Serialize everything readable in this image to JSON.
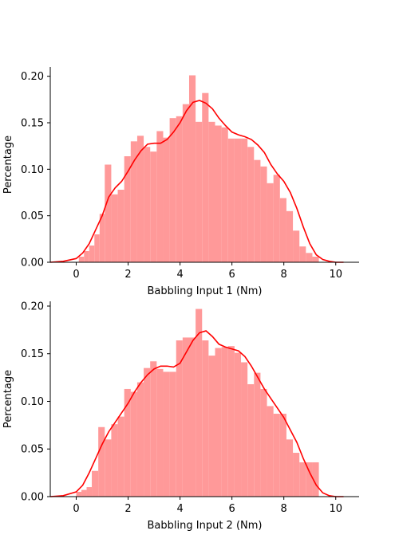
{
  "chart_data": [
    {
      "type": "bar",
      "xlabel": "Babbling Input 1 (Nm)",
      "ylabel": "Percentage",
      "xlim": [
        -1.0,
        10.9
      ],
      "ylim": [
        0.0,
        0.21
      ],
      "xticks": [
        0,
        2,
        4,
        6,
        8,
        10
      ],
      "yticks": [
        0.0,
        0.05,
        0.1,
        0.15,
        0.2
      ],
      "ytick_labels": [
        "0.00",
        "0.05",
        "0.10",
        "0.15",
        "0.20"
      ],
      "bar_color": "#ff9999",
      "kde_color": "#ff0000",
      "grid": false,
      "histogram": {
        "bin_edges": [
          0.1,
          0.3,
          0.5,
          0.7,
          0.9,
          1.1,
          1.35,
          1.6,
          1.85,
          2.1,
          2.35,
          2.6,
          2.85,
          3.1,
          3.35,
          3.6,
          3.85,
          4.1,
          4.35,
          4.6,
          4.85,
          5.1,
          5.35,
          5.6,
          5.85,
          6.1,
          6.35,
          6.6,
          6.85,
          7.1,
          7.35,
          7.6,
          7.85,
          8.1,
          8.35,
          8.6,
          8.85,
          9.1,
          9.35
        ],
        "values": [
          0.006,
          0.012,
          0.018,
          0.03,
          0.052,
          0.105,
          0.073,
          0.078,
          0.114,
          0.13,
          0.136,
          0.124,
          0.119,
          0.141,
          0.134,
          0.155,
          0.157,
          0.17,
          0.201,
          0.151,
          0.182,
          0.151,
          0.147,
          0.145,
          0.133,
          0.133,
          0.133,
          0.124,
          0.11,
          0.103,
          0.085,
          0.094,
          0.069,
          0.055,
          0.034,
          0.017,
          0.01,
          0.006
        ]
      },
      "kde": {
        "x": [
          -1.0,
          -0.5,
          0.0,
          0.25,
          0.5,
          0.75,
          1.0,
          1.25,
          1.5,
          1.75,
          2.0,
          2.25,
          2.5,
          2.75,
          3.0,
          3.25,
          3.5,
          3.75,
          4.0,
          4.25,
          4.5,
          4.75,
          5.0,
          5.25,
          5.5,
          5.75,
          6.0,
          6.25,
          6.5,
          6.75,
          7.0,
          7.25,
          7.5,
          7.75,
          8.0,
          8.25,
          8.5,
          8.75,
          9.0,
          9.25,
          9.5,
          9.75,
          10.0,
          10.3
        ],
        "y": [
          0.0,
          0.001,
          0.004,
          0.01,
          0.02,
          0.035,
          0.05,
          0.07,
          0.08,
          0.087,
          0.098,
          0.11,
          0.12,
          0.127,
          0.128,
          0.128,
          0.132,
          0.14,
          0.15,
          0.163,
          0.172,
          0.174,
          0.171,
          0.165,
          0.155,
          0.147,
          0.14,
          0.137,
          0.135,
          0.132,
          0.126,
          0.118,
          0.105,
          0.095,
          0.087,
          0.075,
          0.058,
          0.038,
          0.02,
          0.008,
          0.003,
          0.001,
          0.0,
          0.0
        ]
      }
    },
    {
      "type": "bar",
      "xlabel": "Babbling Input 2 (Nm)",
      "ylabel": "Percentage",
      "xlim": [
        -1.0,
        10.9
      ],
      "ylim": [
        0.0,
        0.205
      ],
      "xticks": [
        0,
        2,
        4,
        6,
        8,
        10
      ],
      "yticks": [
        0.0,
        0.05,
        0.1,
        0.15,
        0.2
      ],
      "ytick_labels": [
        "0.00",
        "0.05",
        "0.10",
        "0.15",
        "0.20"
      ],
      "bar_color": "#ff9999",
      "kde_color": "#ff0000",
      "grid": false,
      "histogram": {
        "bin_edges": [
          0.0,
          0.2,
          0.4,
          0.6,
          0.85,
          1.1,
          1.35,
          1.6,
          1.85,
          2.1,
          2.35,
          2.6,
          2.85,
          3.1,
          3.35,
          3.6,
          3.85,
          4.1,
          4.35,
          4.6,
          4.85,
          5.1,
          5.35,
          5.6,
          5.85,
          6.1,
          6.35,
          6.6,
          6.85,
          7.1,
          7.35,
          7.6,
          7.85,
          8.1,
          8.35,
          8.6,
          8.85,
          9.1,
          9.35
        ],
        "values": [
          0.005,
          0.007,
          0.01,
          0.027,
          0.073,
          0.06,
          0.076,
          0.084,
          0.113,
          0.11,
          0.12,
          0.135,
          0.142,
          0.134,
          0.131,
          0.131,
          0.164,
          0.167,
          0.167,
          0.197,
          0.164,
          0.148,
          0.156,
          0.157,
          0.158,
          0.151,
          0.141,
          0.118,
          0.13,
          0.113,
          0.095,
          0.087,
          0.087,
          0.06,
          0.046,
          0.036,
          0.036,
          0.036
        ]
      },
      "kde": {
        "x": [
          -1.0,
          -0.5,
          0.0,
          0.25,
          0.5,
          0.75,
          1.0,
          1.25,
          1.5,
          1.75,
          2.0,
          2.25,
          2.5,
          2.75,
          3.0,
          3.25,
          3.5,
          3.75,
          4.0,
          4.25,
          4.5,
          4.75,
          5.0,
          5.25,
          5.5,
          5.75,
          6.0,
          6.25,
          6.5,
          6.75,
          7.0,
          7.25,
          7.5,
          7.75,
          8.0,
          8.25,
          8.5,
          8.75,
          9.0,
          9.25,
          9.5,
          9.75,
          10.0,
          10.3
        ],
        "y": [
          0.0,
          0.001,
          0.005,
          0.012,
          0.025,
          0.04,
          0.055,
          0.068,
          0.078,
          0.088,
          0.098,
          0.11,
          0.12,
          0.128,
          0.134,
          0.137,
          0.137,
          0.136,
          0.14,
          0.152,
          0.164,
          0.172,
          0.174,
          0.168,
          0.16,
          0.157,
          0.155,
          0.153,
          0.147,
          0.137,
          0.125,
          0.113,
          0.103,
          0.093,
          0.083,
          0.07,
          0.057,
          0.04,
          0.025,
          0.012,
          0.004,
          0.001,
          0.0,
          0.0
        ]
      }
    }
  ]
}
